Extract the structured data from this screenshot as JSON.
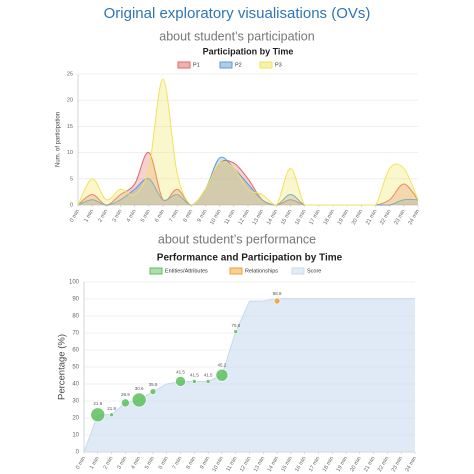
{
  "header": {
    "title": "Original exploratory visualisations (OVs)",
    "subtitle_participation": "about student’s participation",
    "subtitle_performance": "about student’s performance"
  },
  "chart_data": [
    {
      "type": "line",
      "title": "Participation by Time",
      "y_label": "Num. of participation",
      "categories": [
        "0 min",
        "1 min",
        "2 min",
        "3 min",
        "4 min",
        "5 min",
        "6 min",
        "7 min",
        "8 min",
        "9 min",
        "10 min",
        "11 min",
        "12 min",
        "13 min",
        "14 min",
        "15 min",
        "16 min",
        "17 min",
        "18 min",
        "19 min",
        "20 min",
        "21 min",
        "22 min",
        "23 min",
        "24 min"
      ],
      "series": [
        {
          "name": "P1",
          "color": "#e06666",
          "values": [
            0,
            2,
            0,
            2,
            4,
            10,
            1,
            3,
            0,
            3,
            8,
            8,
            5,
            1,
            0,
            1,
            0,
            0,
            0,
            0,
            0,
            0,
            1,
            4,
            1
          ]
        },
        {
          "name": "P2",
          "color": "#5b9bd5",
          "values": [
            0,
            1,
            0,
            1,
            3,
            5,
            1,
            2,
            0,
            3,
            9,
            7,
            4,
            1,
            0,
            2,
            0,
            0,
            0,
            0,
            0,
            0,
            0,
            1,
            1
          ]
        },
        {
          "name": "P3",
          "color": "#f2e35a",
          "values": [
            0,
            5,
            1,
            3,
            2,
            7,
            24,
            6,
            0,
            3,
            8,
            7,
            3,
            2,
            0,
            7,
            0,
            0,
            0,
            0,
            0,
            0,
            7,
            7,
            1
          ]
        }
      ],
      "ylim": [
        0,
        25
      ],
      "yticks": [
        0,
        5,
        10,
        15,
        20,
        25
      ],
      "grid": true
    },
    {
      "type": "combo",
      "title": "Performance and Participation by Time",
      "y_label": "Percentage (%)",
      "categories": [
        "0 min",
        "1 min",
        "2 min",
        "3 min",
        "4 min",
        "5 min",
        "6 min",
        "7 min",
        "8 min",
        "9 min",
        "10 min",
        "11 min",
        "12 min",
        "13 min",
        "14 min",
        "15 min",
        "16 min",
        "17 min",
        "18 min",
        "19 min",
        "20 min",
        "21 min",
        "22 min",
        "23 min",
        "24 min"
      ],
      "series": [
        {
          "name": "Entities/Attributes",
          "type": "bubble",
          "color": "#5cbf5c",
          "values": [
            null,
            21.9,
            21.9,
            28.9,
            30.6,
            35.5,
            null,
            41.5,
            41.5,
            41.5,
            45.2,
            70.8,
            null,
            null,
            null,
            null,
            null,
            null,
            null,
            null,
            null,
            null,
            null,
            null,
            null
          ],
          "sizes": [
            null,
            7,
            2,
            4,
            7,
            3,
            null,
            5,
            2,
            2,
            6,
            2,
            null,
            null,
            null,
            null,
            null,
            null,
            null,
            null,
            null,
            null,
            null,
            null,
            null
          ]
        },
        {
          "name": "Relationships",
          "type": "bubble",
          "color": "#f0a030",
          "values": [
            null,
            null,
            null,
            null,
            null,
            null,
            null,
            null,
            null,
            null,
            null,
            null,
            null,
            null,
            88.8,
            null,
            null,
            null,
            null,
            null,
            null,
            null,
            null,
            null,
            null
          ],
          "sizes": [
            null,
            null,
            null,
            null,
            null,
            null,
            null,
            null,
            null,
            null,
            null,
            null,
            null,
            null,
            3,
            null,
            null,
            null,
            null,
            null,
            null,
            null,
            null,
            null,
            null
          ]
        },
        {
          "name": "Score",
          "type": "area",
          "color": "#c5d9ee",
          "values": [
            0,
            21.9,
            21.9,
            28.9,
            30.6,
            35.5,
            40,
            41.5,
            41.5,
            41.5,
            45.2,
            70.8,
            88.7,
            88.8,
            90.2,
            90.2,
            90.2,
            90.2,
            90.2,
            90.2,
            90.2,
            90.2,
            90.2,
            90.2,
            90.2
          ]
        }
      ],
      "ylim": [
        0,
        100
      ],
      "yticks": [
        0,
        10,
        20,
        30,
        40,
        50,
        60,
        70,
        80,
        90,
        100
      ],
      "grid": true
    }
  ]
}
